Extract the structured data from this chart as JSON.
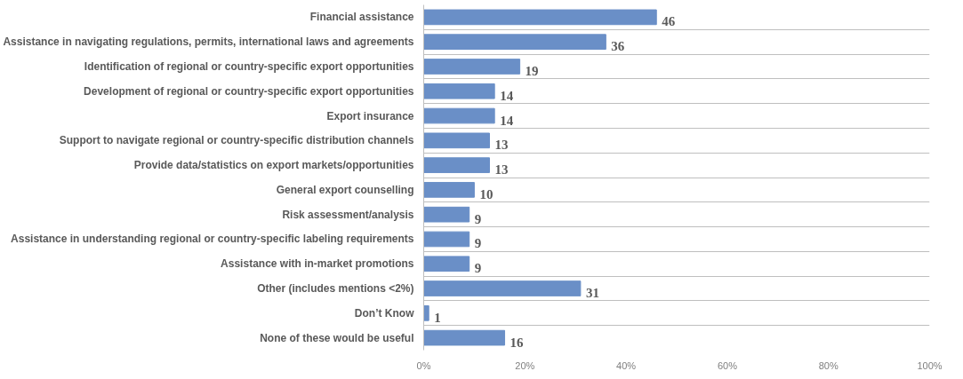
{
  "chart_data": {
    "type": "bar",
    "orientation": "horizontal",
    "categories": [
      "Financial assistance",
      "Assistance in navigating regulations, permits, international laws and agreements",
      "Identification of regional or country-specific export opportunities",
      "Development of regional or country-specific export opportunities",
      "Export insurance",
      "Support to navigate regional or country-specific distribution channels",
      "Provide data/statistics on export markets/opportunities",
      "General export counselling",
      "Risk assessment/analysis",
      "Assistance in understanding regional or country-specific labeling requirements",
      "Assistance with in-market promotions",
      "Other (includes mentions <2%)",
      "Don’t Know",
      "None of these would be useful"
    ],
    "values": [
      46,
      36,
      19,
      14,
      14,
      13,
      13,
      10,
      9,
      9,
      9,
      31,
      1,
      16
    ],
    "color": "#6a8fc7",
    "data_labels": true,
    "grid": "y",
    "xlim": [
      0,
      100
    ],
    "xticks": [
      {
        "value": 0,
        "label": "0%"
      },
      {
        "value": 20,
        "label": "20%"
      },
      {
        "value": 40,
        "label": "40%"
      },
      {
        "value": 60,
        "label": "60%"
      },
      {
        "value": 80,
        "label": "80%"
      },
      {
        "value": 100,
        "label": "100%"
      }
    ]
  }
}
